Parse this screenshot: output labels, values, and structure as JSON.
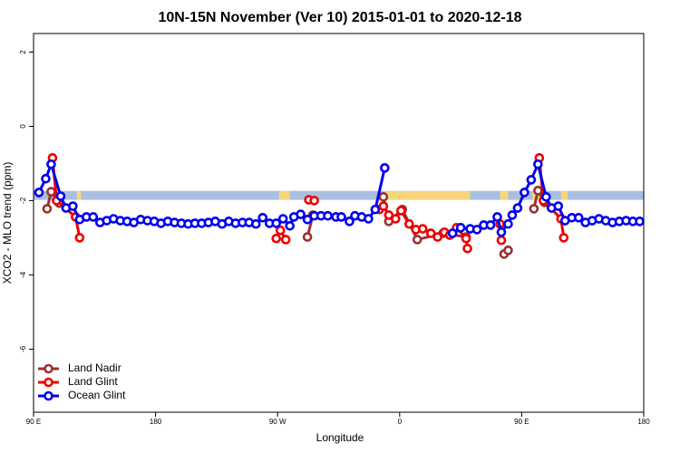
{
  "chart_data": {
    "type": "line",
    "title": "10N-15N November (Ver 10)   2015-01-01 to 2020-12-18",
    "x_label": "Longitude",
    "y_label": "XCO2 - MLO trend (ppm)",
    "xlim": [
      90,
      540
    ],
    "ylim": [
      -7.7,
      2.5
    ],
    "xticks": [
      {
        "value": 90,
        "label": "90 E"
      },
      {
        "value": 180,
        "label": "180"
      },
      {
        "value": 270,
        "label": "90 W"
      },
      {
        "value": 360,
        "label": "0"
      },
      {
        "value": 450,
        "label": "90 E"
      },
      {
        "value": 540,
        "label": "180"
      }
    ],
    "yticks": [
      -6,
      -4,
      -2,
      0,
      2
    ],
    "legend": "bottom-left",
    "land_mask": {
      "ylim": [
        -1.98,
        -1.74
      ],
      "ocean_color": "#a9bfe2",
      "land_color": "#f7d77c",
      "land_x": [
        [
          122,
          125
        ],
        [
          271,
          279
        ],
        [
          349,
          412
        ],
        [
          434,
          440
        ],
        [
          458,
          465
        ],
        [
          479,
          484
        ]
      ]
    },
    "series": [
      {
        "name": "Land Nadir",
        "color": "#993333",
        "x": [
          100,
          103,
          109,
          null,
          292,
          296,
          null,
          348,
          352,
          362,
          373,
          392,
          409,
          null,
          437,
          440,
          null,
          459,
          462,
          467
        ],
        "values": [
          -2.22,
          -1.76,
          -2.07,
          null,
          -2.98,
          -2.39,
          null,
          -1.9,
          -2.56,
          -2.24,
          -3.05,
          -2.88,
          -2.98,
          null,
          -3.44,
          -3.34,
          null,
          -2.22,
          -1.73,
          -2.05
        ]
      },
      {
        "name": "Land Glint",
        "color": "#ee0000",
        "x": [
          104,
          107,
          121,
          124,
          null,
          269,
          272,
          276,
          null,
          293,
          297,
          null,
          345,
          348,
          352,
          357,
          361,
          367,
          372,
          377,
          383,
          388,
          393,
          397,
          402,
          409,
          410,
          null,
          434,
          435,
          null,
          463,
          466,
          479,
          481
        ],
        "values": [
          -0.85,
          -2.0,
          -2.44,
          -3.0,
          null,
          -3.02,
          -2.8,
          -3.05,
          null,
          -1.98,
          -2.0,
          null,
          -2.24,
          -2.15,
          -2.39,
          -2.49,
          -2.27,
          -2.63,
          -2.78,
          -2.76,
          -2.88,
          -2.98,
          -2.85,
          -2.93,
          -2.73,
          -3.02,
          -3.29,
          null,
          -2.63,
          -3.07,
          null,
          -0.85,
          -2.0,
          -2.49,
          -3.0
        ]
      },
      {
        "name": "Ocean Glint",
        "color": "#0000ee",
        "x": [
          94,
          99,
          103,
          110,
          114,
          119,
          124,
          129,
          134,
          139,
          144,
          149,
          154,
          159,
          164,
          169,
          174,
          179,
          184,
          189,
          194,
          199,
          204,
          209,
          214,
          219,
          224,
          229,
          234,
          239,
          244,
          249,
          254,
          259,
          264,
          269,
          274,
          279,
          282,
          287,
          292,
          297,
          302,
          307,
          313,
          317,
          323,
          327,
          332,
          337,
          342,
          349,
          null,
          399,
          405,
          412,
          417,
          422,
          427,
          432,
          435,
          440,
          443,
          447,
          452,
          457,
          462,
          468,
          472,
          477,
          482,
          487,
          492,
          497,
          502,
          507,
          512,
          517,
          522,
          527,
          532,
          537
        ],
        "values": [
          -1.78,
          -1.41,
          -1.02,
          -1.88,
          -2.2,
          -2.15,
          -2.51,
          -2.44,
          -2.44,
          -2.59,
          -2.54,
          -2.49,
          -2.54,
          -2.56,
          -2.59,
          -2.51,
          -2.54,
          -2.56,
          -2.61,
          -2.56,
          -2.59,
          -2.61,
          -2.63,
          -2.61,
          -2.61,
          -2.59,
          -2.56,
          -2.63,
          -2.56,
          -2.61,
          -2.59,
          -2.59,
          -2.63,
          -2.46,
          -2.61,
          -2.61,
          -2.49,
          -2.68,
          -2.44,
          -2.37,
          -2.51,
          -2.41,
          -2.41,
          -2.41,
          -2.44,
          -2.44,
          -2.56,
          -2.41,
          -2.44,
          -2.49,
          -2.24,
          -1.12,
          null,
          -2.88,
          -2.73,
          -2.76,
          -2.78,
          -2.66,
          -2.66,
          -2.44,
          -2.85,
          -2.63,
          -2.39,
          -2.2,
          -1.78,
          -1.44,
          -1.02,
          -1.9,
          -2.2,
          -2.15,
          -2.54,
          -2.46,
          -2.46,
          -2.59,
          -2.54,
          -2.49,
          -2.54,
          -2.59,
          -2.56,
          -2.54,
          -2.56,
          -2.56
        ]
      }
    ]
  }
}
